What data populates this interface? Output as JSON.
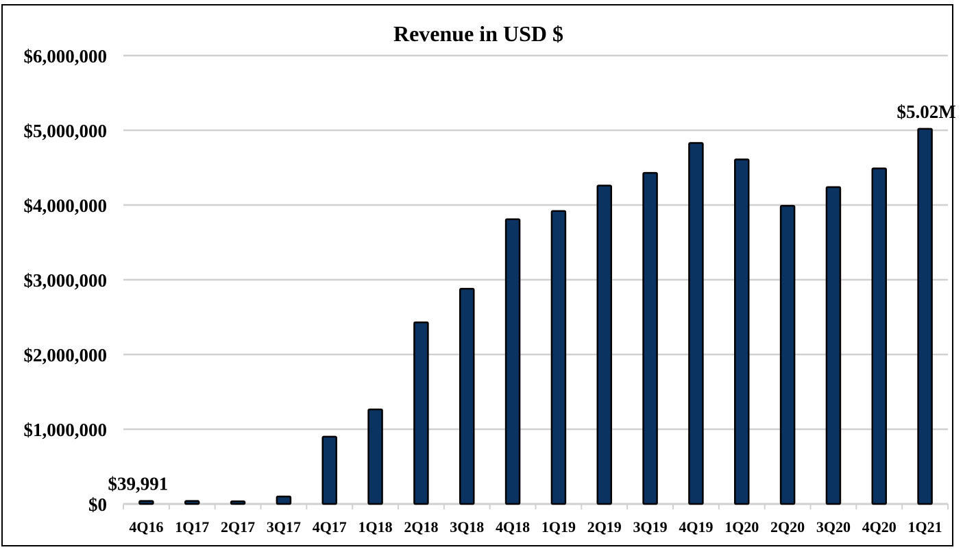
{
  "chart_data": {
    "type": "bar",
    "title": "Revenue in USD $",
    "xlabel": "",
    "ylabel": "",
    "ylim": [
      0,
      6000000
    ],
    "yticks": [
      0,
      1000000,
      2000000,
      3000000,
      4000000,
      5000000,
      6000000
    ],
    "ytick_labels": [
      "$0",
      "$1,000,000",
      "$2,000,000",
      "$3,000,000",
      "$4,000,000",
      "$5,000,000",
      "$6,000,000"
    ],
    "grid": true,
    "legend": "none",
    "bar_color": "#0b3361",
    "categories": [
      "4Q16",
      "1Q17",
      "2Q17",
      "3Q17",
      "4Q17",
      "1Q18",
      "2Q18",
      "3Q18",
      "4Q18",
      "1Q19",
      "2Q19",
      "3Q19",
      "4Q19",
      "1Q20",
      "2Q20",
      "3Q20",
      "4Q20",
      "1Q21"
    ],
    "values": [
      39991,
      40000,
      35000,
      100000,
      900000,
      1265000,
      2430000,
      2880000,
      3810000,
      3920000,
      4260000,
      4430000,
      4830000,
      4610000,
      3990000,
      4240000,
      4490000,
      5020000
    ],
    "annotations": [
      {
        "category": "4Q16",
        "text": "$39,991"
      },
      {
        "category": "1Q21",
        "text": "$5.02M"
      }
    ]
  }
}
